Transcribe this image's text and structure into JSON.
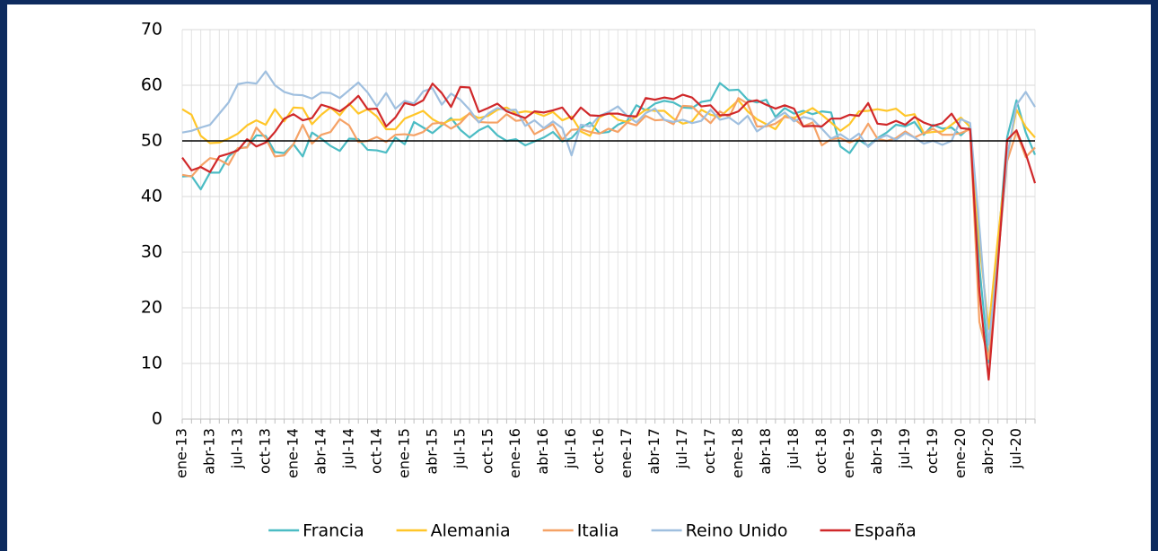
{
  "chart_data": {
    "type": "line",
    "categories": [
      "ene-13",
      null,
      null,
      "abr-13",
      null,
      null,
      "jul-13",
      null,
      null,
      "oct-13",
      null,
      null,
      "ene-14",
      null,
      null,
      "abr-14",
      null,
      null,
      "jul-14",
      null,
      null,
      "oct-14",
      null,
      null,
      "ene-15",
      null,
      null,
      "abr-15",
      null,
      null,
      "jul-15",
      null,
      null,
      "oct-15",
      null,
      null,
      "ene-16",
      null,
      null,
      "abr-16",
      null,
      null,
      "jul-16",
      null,
      null,
      "oct-16",
      null,
      null,
      "ene-17",
      null,
      null,
      "abr-17",
      null,
      null,
      "jul-17",
      null,
      null,
      "oct-17",
      null,
      null,
      "ene-18",
      null,
      null,
      "abr-18",
      null,
      null,
      "jul-18",
      null,
      null,
      "oct-18",
      null,
      null,
      "ene-19",
      null,
      null,
      "abr-19",
      null,
      null,
      "jul-19",
      null,
      null,
      "oct-19",
      null,
      null,
      "ene-20",
      null,
      null,
      "abr-20",
      null,
      null,
      "jul-20",
      null,
      null
    ],
    "series": [
      {
        "name": "Francia",
        "color": "#4bbcc4",
        "values": [
          43.6,
          43.7,
          41.3,
          44.3,
          44.3,
          47.2,
          48.6,
          48.9,
          51.0,
          50.9,
          48.0,
          47.8,
          49.4,
          47.2,
          51.5,
          50.4,
          49.1,
          48.2,
          50.4,
          50.3,
          48.4,
          48.3,
          47.9,
          50.6,
          49.4,
          53.4,
          52.4,
          51.4,
          52.8,
          54.1,
          52.0,
          50.6,
          51.9,
          52.7,
          51.0,
          50.0,
          50.3,
          49.2,
          49.9,
          50.6,
          51.6,
          49.9,
          50.5,
          52.3,
          53.3,
          51.4,
          51.6,
          52.9,
          53.6,
          56.4,
          55.5,
          56.7,
          57.2,
          56.9,
          56.0,
          55.9,
          57.0,
          57.3,
          60.4,
          59.1,
          59.2,
          57.4,
          56.9,
          57.4,
          54.3,
          55.9,
          54.9,
          55.4,
          54.8,
          55.3,
          55.1,
          49.0,
          47.8,
          50.2,
          49.1,
          50.5,
          51.5,
          52.9,
          52.6,
          53.4,
          51.1,
          52.9,
          52.2,
          52.4,
          51.0,
          52.5,
          27.4,
          10.2,
          31.1,
          50.7,
          57.3,
          51.5,
          47.5
        ]
      },
      {
        "name": "Alemania",
        "color": "#ffc629",
        "values": [
          55.7,
          54.7,
          50.9,
          49.6,
          49.7,
          50.4,
          51.3,
          52.8,
          53.7,
          52.9,
          55.7,
          53.5,
          56.0,
          55.9,
          53.0,
          54.7,
          56.0,
          54.6,
          56.7,
          54.9,
          55.7,
          54.4,
          52.1,
          52.1,
          54.0,
          54.7,
          55.4,
          53.9,
          53.0,
          53.8,
          53.8,
          54.9,
          54.1,
          54.5,
          55.6,
          56.0,
          55.0,
          55.3,
          55.1,
          54.5,
          55.2,
          53.7,
          54.4,
          51.7,
          50.9,
          54.2,
          55.1,
          53.8,
          53.4,
          54.4,
          55.6,
          55.4,
          55.4,
          54.0,
          53.1,
          53.5,
          55.6,
          54.7,
          54.3,
          55.8,
          57.3,
          55.3,
          53.9,
          53.0,
          52.1,
          54.5,
          54.1,
          55.0,
          55.9,
          54.7,
          53.3,
          51.8,
          53.0,
          55.3,
          55.4,
          55.7,
          55.4,
          55.8,
          54.5,
          54.8,
          51.4,
          51.6,
          51.7,
          52.9,
          54.2,
          52.5,
          31.7,
          16.2,
          32.6,
          47.3,
          55.6,
          52.5,
          50.6
        ]
      },
      {
        "name": "Italia",
        "color": "#f5a266",
        "values": [
          43.9,
          43.6,
          45.5,
          46.9,
          46.6,
          45.7,
          48.7,
          48.8,
          52.4,
          50.5,
          47.2,
          47.4,
          49.4,
          52.9,
          49.5,
          51.1,
          51.6,
          53.9,
          52.8,
          49.8,
          50.0,
          50.7,
          49.8,
          51.1,
          51.2,
          51.0,
          51.6,
          53.1,
          53.3,
          52.2,
          53.2,
          55.0,
          53.4,
          53.3,
          53.3,
          54.8,
          53.6,
          53.8,
          51.2,
          52.1,
          53.0,
          50.2,
          52.0,
          52.1,
          51.6,
          51.3,
          52.2,
          51.6,
          53.3,
          52.8,
          54.5,
          53.7,
          53.8,
          53.0,
          56.3,
          56.2,
          54.6,
          53.2,
          55.3,
          54.3,
          57.7,
          56.7,
          52.6,
          52.6,
          53.1,
          54.3,
          54.0,
          52.6,
          53.3,
          49.2,
          50.3,
          50.5,
          49.7,
          50.4,
          53.1,
          50.4,
          50.0,
          50.5,
          51.7,
          50.6,
          51.4,
          52.2,
          51.1,
          51.1,
          51.4,
          52.1,
          17.4,
          10.8,
          28.9,
          46.4,
          51.6,
          47.1,
          48.8
        ]
      },
      {
        "name": "Reino Unido",
        "color": "#9fbfdf",
        "values": [
          51.5,
          51.8,
          52.4,
          52.9,
          54.9,
          56.9,
          60.2,
          60.5,
          60.3,
          62.5,
          60.0,
          58.8,
          58.3,
          58.2,
          57.6,
          58.7,
          58.6,
          57.7,
          59.1,
          60.5,
          58.7,
          56.2,
          58.6,
          55.8,
          57.2,
          56.7,
          58.9,
          59.5,
          56.5,
          58.5,
          57.4,
          55.6,
          53.3,
          54.9,
          55.9,
          55.5,
          55.6,
          52.7,
          53.7,
          52.3,
          53.5,
          52.3,
          47.4,
          52.9,
          52.6,
          54.5,
          55.2,
          56.2,
          54.5,
          53.3,
          55.0,
          55.8,
          53.8,
          53.4,
          53.8,
          53.2,
          53.6,
          55.6,
          53.8,
          54.2,
          53.0,
          54.5,
          51.7,
          52.8,
          54.0,
          55.1,
          53.5,
          54.3,
          53.9,
          52.2,
          50.4,
          51.2,
          50.1,
          51.3,
          48.9,
          50.4,
          51.0,
          50.2,
          51.4,
          50.6,
          49.5,
          50.0,
          49.3,
          50.0,
          53.9,
          53.2,
          34.5,
          13.4,
          29.0,
          47.1,
          56.5,
          58.8,
          56.1
        ]
      },
      {
        "name": "España",
        "color": "#d0282a",
        "values": [
          47.0,
          44.7,
          45.3,
          44.4,
          47.2,
          47.7,
          48.3,
          50.3,
          49.0,
          49.7,
          51.6,
          54.0,
          54.8,
          53.7,
          54.1,
          56.5,
          56.0,
          55.3,
          56.5,
          58.1,
          55.7,
          55.8,
          52.6,
          54.2,
          56.8,
          56.4,
          57.3,
          60.3,
          58.6,
          56.1,
          59.7,
          59.6,
          55.2,
          55.9,
          56.7,
          55.3,
          54.7,
          54.1,
          55.3,
          55.1,
          55.5,
          56.0,
          53.9,
          56.0,
          54.6,
          54.5,
          54.9,
          54.9,
          54.5,
          54.4,
          57.7,
          57.4,
          57.8,
          57.5,
          58.3,
          57.8,
          56.2,
          56.4,
          54.6,
          54.7,
          55.3,
          57.0,
          57.3,
          56.5,
          55.8,
          56.4,
          55.8,
          52.6,
          52.7,
          52.6,
          54.0,
          54.0,
          54.7,
          54.5,
          56.8,
          53.1,
          52.9,
          53.6,
          52.9,
          54.3,
          53.3,
          52.7,
          53.2,
          54.9,
          52.3,
          52.1,
          23.0,
          7.1,
          27.9,
          50.2,
          51.9,
          47.7,
          42.4
        ]
      }
    ],
    "ylim": [
      0,
      70
    ],
    "yticks": [
      0,
      10,
      20,
      30,
      40,
      50,
      60,
      70
    ],
    "reference_line": 50,
    "grid": true,
    "legend": "bottom"
  }
}
